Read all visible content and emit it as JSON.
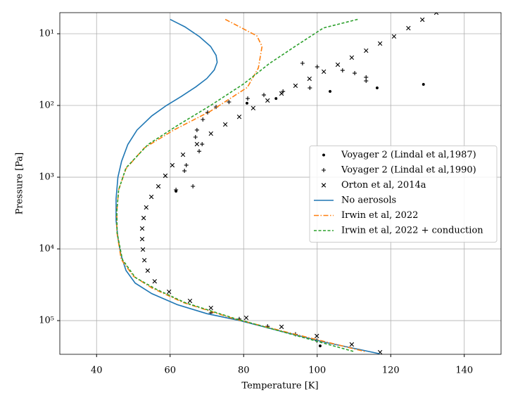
{
  "chart_data": {
    "type": "line",
    "xlabel": "Temperature [K]",
    "ylabel": "Pressure [Pa]",
    "xlim": [
      30,
      150
    ],
    "xticks": [
      40,
      60,
      80,
      100,
      120,
      140
    ],
    "ylim": [
      5.08,
      295000
    ],
    "log_y": true,
    "invert_y": true,
    "yticks": [
      {
        "value": 10,
        "label": "10¹"
      },
      {
        "value": 100,
        "label": "10²"
      },
      {
        "value": 1000,
        "label": "10³"
      },
      {
        "value": 10000,
        "label": "10⁴"
      },
      {
        "value": 100000,
        "label": "10⁵"
      }
    ],
    "grid": true,
    "legend": "center right",
    "series": [
      {
        "name": "Voyager 2 (Lindal et al,1987)",
        "color": "#000000",
        "marker": "dot",
        "x": [
          128.9,
          116.3,
          103.5,
          88.8,
          80.9,
          61.6,
          100.8
        ],
        "values": [
          50.8,
          56.9,
          63.7,
          80,
          93,
          1570,
          225000
        ]
      },
      {
        "name": "Voyager 2 (Lindal et al,1990)",
        "color": "#000000",
        "marker": "plus",
        "x": [
          96.0,
          100.0,
          106.9,
          110.2,
          113.3,
          113.3,
          98.0,
          90.7,
          85.5,
          81.1,
          76.0,
          72.5,
          70.2,
          68.9,
          67.3,
          66.9,
          68.7,
          67.9,
          64.4,
          63.9,
          66.2,
          61.6,
          71.1,
          78.8,
          86.5,
          94.1,
          99.9
        ],
        "values": [
          25.8,
          28.9,
          32.4,
          35.4,
          40.5,
          45.4,
          56.9,
          63.7,
          71.4,
          80,
          89.5,
          105,
          125,
          157,
          220,
          276,
          346,
          435,
          680,
          816,
          1340,
          1500,
          78000,
          95000,
          120000,
          155000,
          190000
        ]
      },
      {
        "name": "Orton et al, 2014a",
        "color": "#000000",
        "marker": "x",
        "x": [
          132.4,
          128.6,
          124.8,
          120.9,
          117.1,
          113.3,
          109.4,
          105.6,
          101.8,
          97.9,
          94.1,
          90.3,
          86.5,
          82.6,
          78.8,
          75.0,
          71.1,
          67.3,
          63.5,
          60.6,
          58.7,
          56.8,
          54.9,
          53.5,
          52.8,
          52.4,
          52.4,
          52.6,
          53.0,
          53.9,
          55.8,
          59.7,
          65.4,
          71.1,
          80.7,
          90.3,
          99.9,
          109.4,
          117.1
        ],
        "values": [
          5.08,
          6.37,
          8.36,
          10.9,
          13.7,
          17.2,
          21.5,
          27.0,
          33.8,
          42.4,
          53.1,
          68.1,
          85.3,
          109,
          144,
          184,
          247,
          346,
          486,
          681,
          955,
          1340,
          1880,
          2640,
          3710,
          5200,
          7300,
          10200,
          14400,
          20100,
          28300,
          39600,
          53100,
          66600,
          91400,
          122000,
          164000,
          215000,
          276000
        ]
      },
      {
        "name": "No aerosols",
        "color": "#1f77b4",
        "linestyle": "solid",
        "x": [
          60,
          64,
          68,
          71,
          72.5,
          72.8,
          72,
          70,
          67,
          63,
          59,
          55,
          51,
          48.5,
          46.8,
          45.8,
          45.3,
          45.3,
          45.8,
          46.6,
          48,
          50.5,
          55,
          62,
          70,
          79,
          90,
          102,
          117
        ],
        "values": [
          6.3,
          8,
          11,
          15,
          20,
          25,
          32,
          42,
          55,
          75,
          100,
          140,
          220,
          350,
          600,
          1000,
          2000,
          4000,
          7000,
          12000,
          20000,
          30000,
          42000,
          60000,
          80000,
          100000,
          140000,
          200000,
          290000
        ]
      },
      {
        "name": "Irwin et al, 2022",
        "color": "#ff7f0e",
        "linestyle": "dashdot",
        "x": [
          75,
          83.6,
          85,
          84,
          81,
          71,
          61,
          53,
          48,
          46,
          45.5,
          45.5,
          46.7,
          50,
          55,
          63.6,
          77,
          94,
          113
        ],
        "values": [
          6.3,
          10.7,
          15,
          30,
          56,
          120,
          220,
          390,
          760,
          1500,
          3000,
          5800,
          14000,
          24000,
          35000,
          56000,
          93000,
          155000,
          270000
        ]
      },
      {
        "name": "Irwin et al, 2022 + conduction",
        "color": "#2ca02c",
        "linestyle": "dashed",
        "x": [
          111,
          101.7,
          94,
          87,
          80,
          71,
          62,
          54,
          48,
          46,
          45.5,
          45.6,
          47,
          50.5,
          56,
          64,
          78,
          94,
          110
        ],
        "values": [
          6.3,
          8.3,
          15,
          26,
          50,
          100,
          190,
          350,
          740,
          1500,
          3000,
          6000,
          14000,
          25000,
          36000,
          56000,
          95000,
          160000,
          270000
        ]
      }
    ]
  }
}
